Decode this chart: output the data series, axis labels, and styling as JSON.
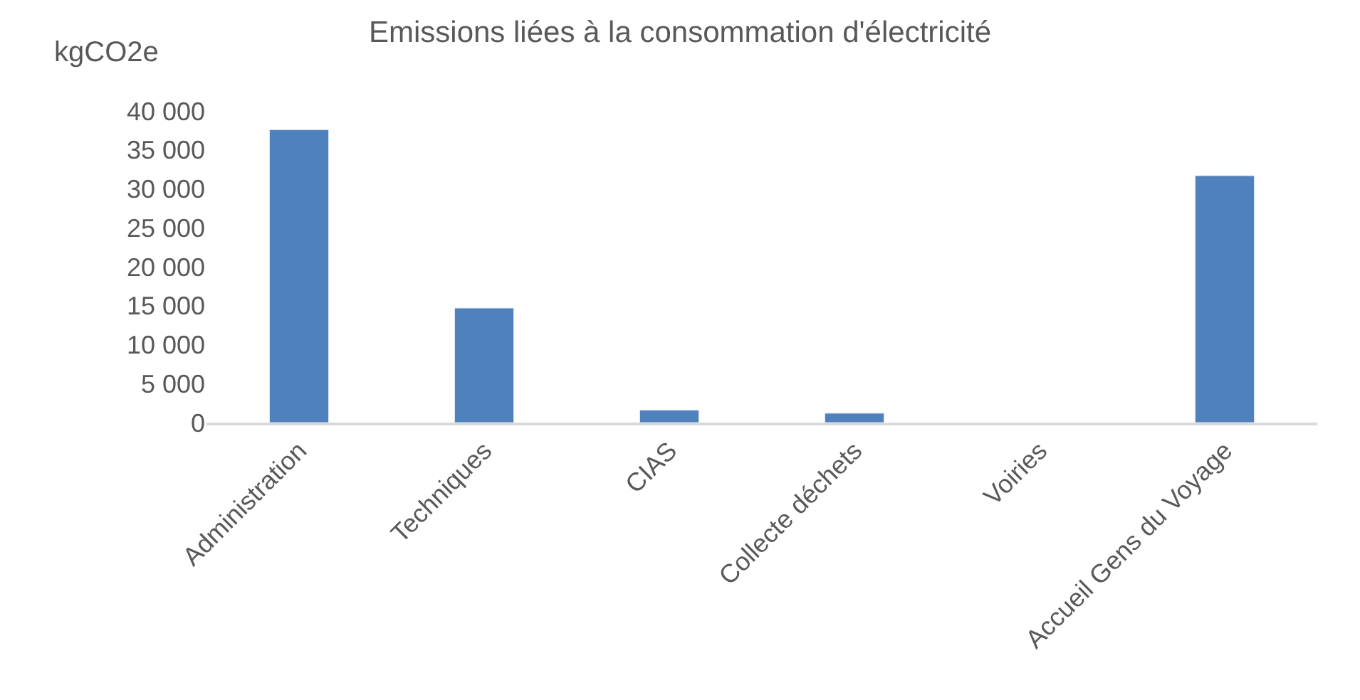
{
  "chart_data": {
    "type": "bar",
    "title": "Emissions liées à la consommation d'électricité",
    "ylabel": "kgCO2e",
    "categories": [
      "Administration",
      "Techniques",
      "CIAS",
      "Collecte déchets",
      "Voiries",
      "Accueil Gens du Voyage"
    ],
    "values": [
      37600,
      14700,
      1600,
      1200,
      null,
      31700
    ],
    "color": "#4f81bd",
    "ylim": [
      0,
      40000
    ],
    "yticks": [
      {
        "value": 0,
        "label": "0"
      },
      {
        "value": 5000,
        "label": "5 000"
      },
      {
        "value": 10000,
        "label": "10 000"
      },
      {
        "value": 15000,
        "label": "15 000"
      },
      {
        "value": 20000,
        "label": "20 000"
      },
      {
        "value": 25000,
        "label": "25 000"
      },
      {
        "value": 30000,
        "label": "30 000"
      },
      {
        "value": 35000,
        "label": "35 000"
      },
      {
        "value": 40000,
        "label": "40 000"
      }
    ]
  }
}
